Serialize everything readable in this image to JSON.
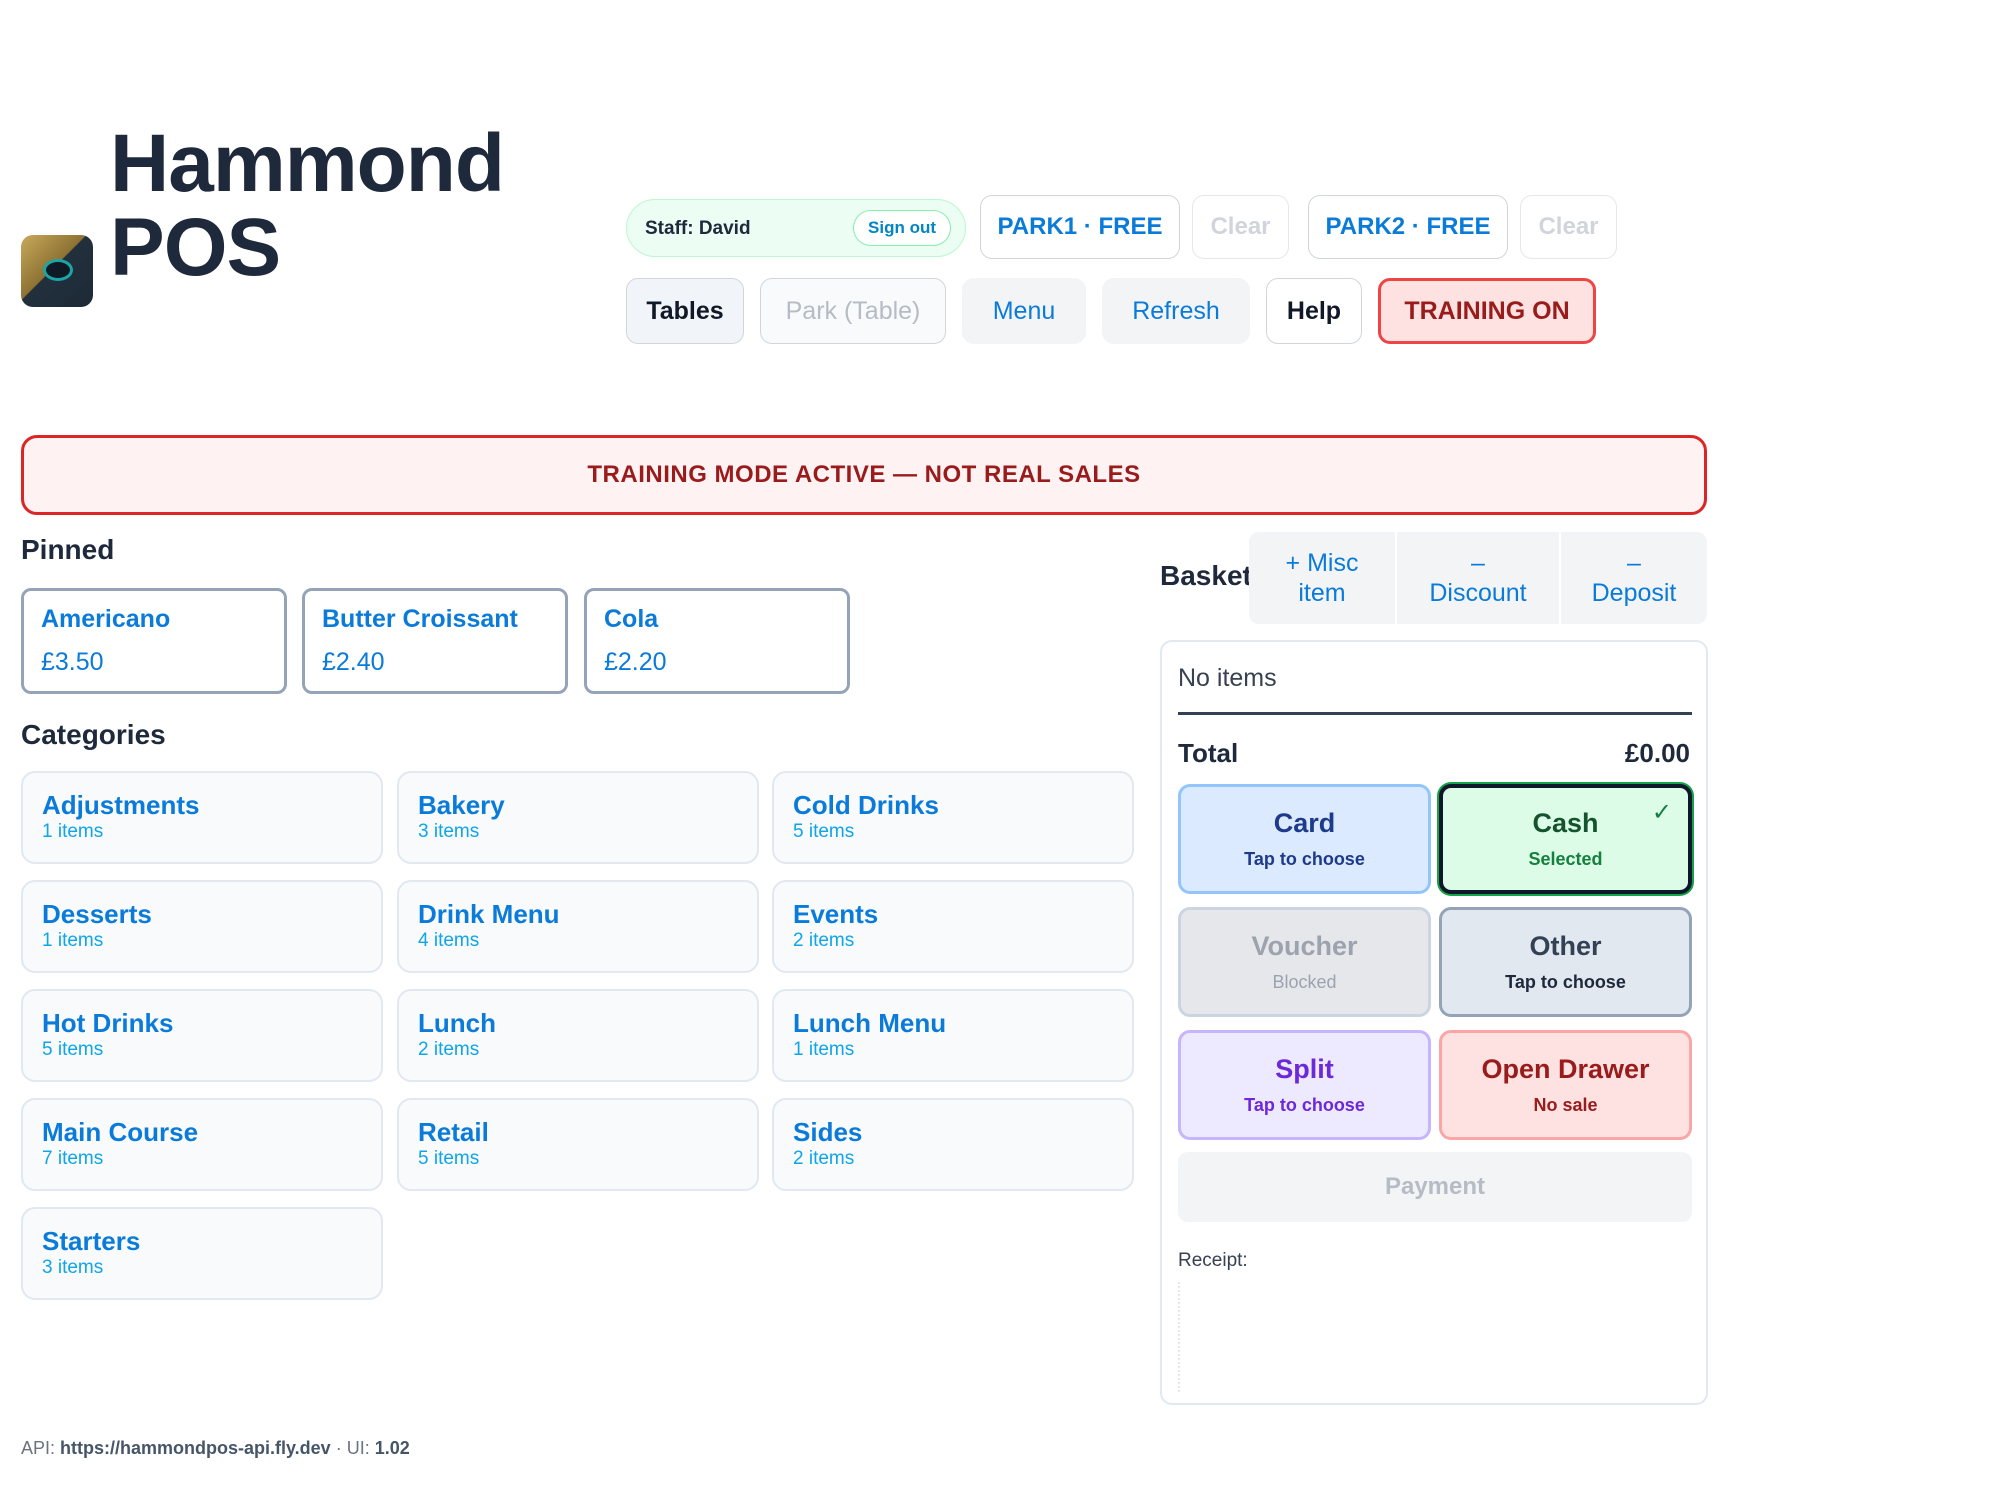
{
  "app": {
    "title": "Hammond POS"
  },
  "header": {
    "staff_label": "Staff: David",
    "sign_out": "Sign out",
    "park_slots": [
      {
        "label": "PARK1 · FREE",
        "clear": "Clear"
      },
      {
        "label": "PARK2 · FREE",
        "clear": "Clear"
      }
    ],
    "nav": {
      "tables": "Tables",
      "park_table": "Park (Table)",
      "menu": "Menu",
      "refresh": "Refresh",
      "help": "Help",
      "training": "TRAINING ON"
    }
  },
  "banner": "TRAINING MODE ACTIVE — NOT REAL SALES",
  "pinned": {
    "label": "Pinned",
    "items": [
      {
        "name": "Americano",
        "price": "£3.50"
      },
      {
        "name": "Butter Croissant",
        "price": "£2.40"
      },
      {
        "name": "Cola",
        "price": "£2.20"
      }
    ]
  },
  "categories": {
    "label": "Categories",
    "items": [
      {
        "name": "Adjustments",
        "count": "1 items"
      },
      {
        "name": "Bakery",
        "count": "3 items"
      },
      {
        "name": "Cold Drinks",
        "count": "5 items"
      },
      {
        "name": "Desserts",
        "count": "1 items"
      },
      {
        "name": "Drink Menu",
        "count": "4 items"
      },
      {
        "name": "Events",
        "count": "2 items"
      },
      {
        "name": "Hot Drinks",
        "count": "5 items"
      },
      {
        "name": "Lunch",
        "count": "2 items"
      },
      {
        "name": "Lunch Menu",
        "count": "1 items"
      },
      {
        "name": "Main Course",
        "count": "7 items"
      },
      {
        "name": "Retail",
        "count": "5 items"
      },
      {
        "name": "Sides",
        "count": "2 items"
      },
      {
        "name": "Starters",
        "count": "3 items"
      }
    ]
  },
  "basket": {
    "title": "Basket",
    "actions": {
      "misc_line1": "+ Misc",
      "misc_line2": "item",
      "discount_line1": "–",
      "discount_line2": "Discount",
      "deposit_line1": "–",
      "deposit_line2": "Deposit"
    },
    "empty_text": "No items",
    "total_label": "Total",
    "total_value": "£0.00",
    "payment_methods": {
      "card": {
        "title": "Card",
        "sub": "Tap to choose"
      },
      "cash": {
        "title": "Cash",
        "sub": "Selected",
        "check": "✓"
      },
      "voucher": {
        "title": "Voucher",
        "sub": "Blocked"
      },
      "other": {
        "title": "Other",
        "sub": "Tap to choose"
      },
      "split": {
        "title": "Split",
        "sub": "Tap to choose"
      },
      "drawer": {
        "title": "Open Drawer",
        "sub": "No sale"
      }
    },
    "payment_button": "Payment",
    "receipt_label": "Receipt:"
  },
  "footer": {
    "api_prefix": "API: ",
    "api_url": "https://hammondpos-api.fly.dev",
    "ui_prefix": " · UI: ",
    "ui_version": "1.02"
  },
  "colors": {
    "accent": "#0b7bd9",
    "training_red": "#dc2626",
    "cash_selected": "#dcfce7"
  }
}
